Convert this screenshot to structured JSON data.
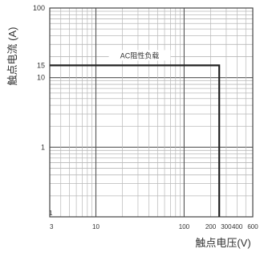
{
  "chart_data": {
    "type": "line",
    "title": "",
    "xlabel": "触点电压(V)",
    "ylabel": "触点电流 (A)",
    "x_scale": "log",
    "y_scale": "log",
    "xlim": [
      3,
      600
    ],
    "ylim": [
      0.1,
      100
    ],
    "x_ticks": [
      {
        "value": 3,
        "label": "3"
      },
      {
        "value": 10,
        "label": "10"
      },
      {
        "value": 100,
        "label": "100"
      },
      {
        "value": 200,
        "label": "200"
      },
      {
        "value": 300,
        "label": "300"
      },
      {
        "value": 400,
        "label": "400"
      },
      {
        "value": 600,
        "label": "600"
      }
    ],
    "y_ticks": [
      {
        "value": 100,
        "label": "100"
      },
      {
        "value": 15,
        "label": "15"
      },
      {
        "value": 10,
        "label": "10"
      },
      {
        "value": 1,
        "label": "1"
      },
      {
        "value": 0.1,
        "label": "0.1"
      }
    ],
    "grid": true,
    "series": [
      {
        "name": "AC阻性负载",
        "x": [
          3,
          250,
          250
        ],
        "y": [
          15,
          15,
          0.1
        ]
      }
    ],
    "colors": {
      "background": "#ffffff",
      "grid": "#b8b8b8",
      "grid_dark": "#555555",
      "series": "#222222",
      "text": "#333333"
    }
  }
}
